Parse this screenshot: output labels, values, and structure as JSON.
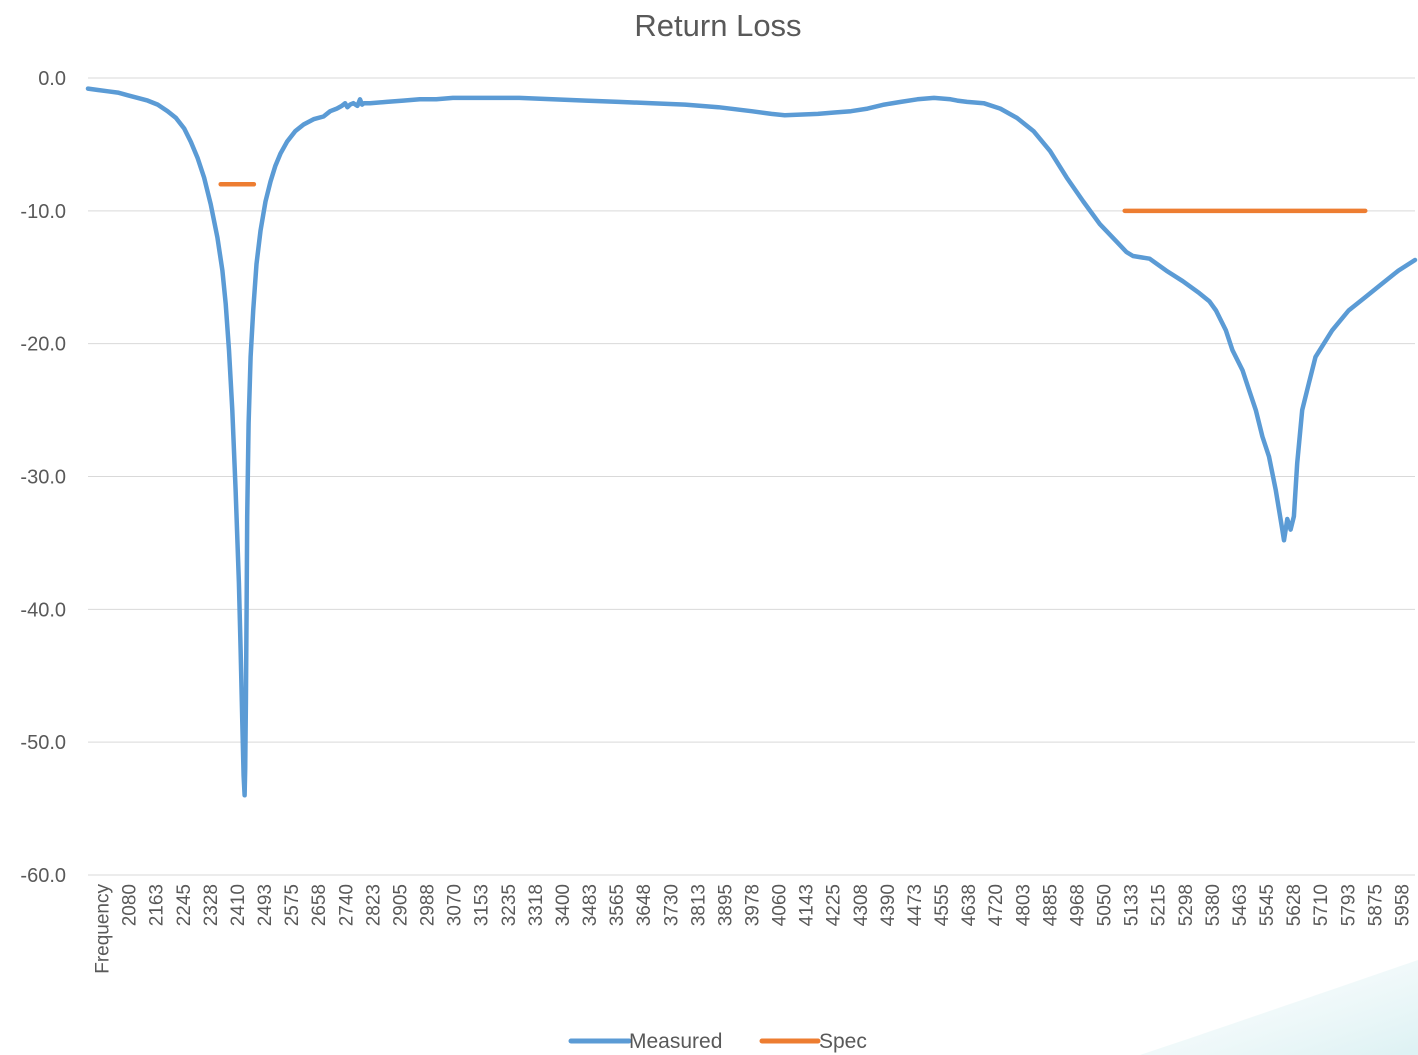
{
  "chart_data": {
    "type": "line",
    "title": "Return Loss",
    "xlabel": "",
    "ylabel": "",
    "ylim": [
      -60,
      0
    ],
    "grid": true,
    "legend_position": "bottom",
    "colors": {
      "measured": "#5b9bd5",
      "spec": "#ed7d31",
      "grid": "#d9d9d9",
      "text": "#595959"
    },
    "y_ticks": [
      "0.0",
      "-10.0",
      "-20.0",
      "-30.0",
      "-40.0",
      "-50.0",
      "-60.0"
    ],
    "x_tick_labels": [
      "Frequency",
      "2080",
      "2163",
      "2245",
      "2328",
      "2410",
      "2493",
      "2575",
      "2658",
      "2740",
      "2823",
      "2905",
      "2988",
      "3070",
      "3153",
      "3235",
      "3318",
      "3400",
      "3483",
      "3565",
      "3648",
      "3730",
      "3813",
      "3895",
      "3978",
      "4060",
      "4143",
      "4225",
      "4308",
      "4390",
      "4473",
      "4555",
      "4638",
      "4720",
      "4803",
      "4885",
      "4968",
      "5050",
      "5133",
      "5215",
      "5298",
      "5380",
      "5463",
      "5545",
      "5628",
      "5710",
      "5793",
      "5875",
      "5958"
    ],
    "x_range": [
      2000,
      6000
    ],
    "series": [
      {
        "name": "Measured",
        "x": [
          2000,
          2030,
          2060,
          2090,
          2120,
          2150,
          2180,
          2210,
          2240,
          2265,
          2290,
          2310,
          2330,
          2350,
          2370,
          2390,
          2405,
          2415,
          2425,
          2435,
          2445,
          2455,
          2460,
          2465,
          2469,
          2472,
          2474,
          2476,
          2478,
          2480,
          2484,
          2490,
          2498,
          2508,
          2520,
          2535,
          2550,
          2565,
          2580,
          2600,
          2625,
          2650,
          2680,
          2710,
          2730,
          2750,
          2765,
          2775,
          2782,
          2790,
          2800,
          2812,
          2820,
          2826,
          2832,
          2850,
          2900,
          2950,
          3000,
          3050,
          3100,
          3150,
          3200,
          3250,
          3300,
          3400,
          3500,
          3600,
          3700,
          3800,
          3900,
          4000,
          4060,
          4100,
          4200,
          4250,
          4300,
          4350,
          4400,
          4450,
          4500,
          4550,
          4600,
          4620,
          4650,
          4700,
          4750,
          4800,
          4850,
          4900,
          4950,
          5000,
          5050,
          5100,
          5130,
          5150,
          5200,
          5250,
          5300,
          5350,
          5380,
          5400,
          5430,
          5450,
          5480,
          5500,
          5520,
          5540,
          5560,
          5580,
          5600,
          5605,
          5615,
          5625,
          5635,
          5645,
          5660,
          5680,
          5700,
          5750,
          5800,
          5850,
          5900,
          5950,
          6000
        ],
        "y": [
          -0.8,
          -0.9,
          -1.0,
          -1.1,
          -1.3,
          -1.5,
          -1.7,
          -2.0,
          -2.5,
          -3.0,
          -3.8,
          -4.8,
          -6.0,
          -7.5,
          -9.5,
          -12.0,
          -14.5,
          -17.0,
          -20.5,
          -25.0,
          -31.0,
          -38.0,
          -43.0,
          -48.5,
          -52.5,
          -54.0,
          -52.0,
          -47.0,
          -40.0,
          -33.0,
          -26.0,
          -21.0,
          -17.5,
          -14.0,
          -11.5,
          -9.3,
          -7.8,
          -6.6,
          -5.7,
          -4.8,
          -4.0,
          -3.5,
          -3.1,
          -2.9,
          -2.5,
          -2.3,
          -2.1,
          -1.9,
          -2.2,
          -2.0,
          -1.9,
          -2.1,
          -1.6,
          -2.0,
          -1.9,
          -1.9,
          -1.8,
          -1.7,
          -1.6,
          -1.6,
          -1.5,
          -1.5,
          -1.5,
          -1.5,
          -1.5,
          -1.6,
          -1.7,
          -1.8,
          -1.9,
          -2.0,
          -2.2,
          -2.5,
          -2.7,
          -2.8,
          -2.7,
          -2.6,
          -2.5,
          -2.3,
          -2.0,
          -1.8,
          -1.6,
          -1.5,
          -1.6,
          -1.7,
          -1.8,
          -1.9,
          -2.3,
          -3.0,
          -4.0,
          -5.5,
          -7.5,
          -9.3,
          -11.0,
          -12.3,
          -13.1,
          -13.4,
          -13.6,
          -14.5,
          -15.3,
          -16.2,
          -16.8,
          -17.5,
          -19.0,
          -20.5,
          -22.0,
          -23.5,
          -25.0,
          -27.0,
          -28.5,
          -31.0,
          -34.0,
          -34.8,
          -33.2,
          -34.0,
          -33.0,
          -29.0,
          -25.0,
          -23.0,
          -21.0,
          -19.0,
          -17.5,
          -16.5,
          -15.5,
          -14.5,
          -13.7
        ]
      },
      {
        "name": "Spec",
        "segments": [
          {
            "x": [
              2400,
              2500
            ],
            "y": [
              -8,
              -8
            ]
          },
          {
            "x": [
              5125,
              5850
            ],
            "y": [
              -10,
              -10
            ]
          }
        ]
      }
    ]
  }
}
